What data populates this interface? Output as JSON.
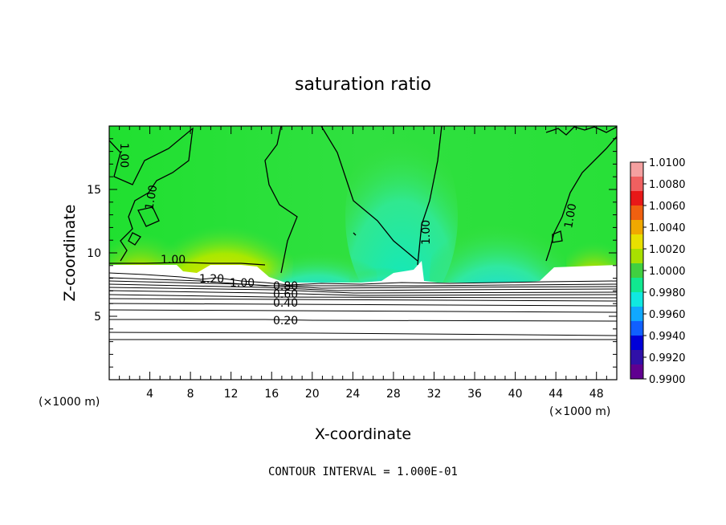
{
  "chart_data": {
    "type": "heatmap",
    "title": "saturation ratio",
    "xlabel": "X-coordinate",
    "ylabel": "Z-coordinate",
    "x_unit_label": "(×1000 m)",
    "x_unit_label_right": "(×1000 m)",
    "xlim": [
      0,
      50
    ],
    "ylim": [
      0,
      20
    ],
    "x_ticks": [
      4,
      8,
      12,
      16,
      20,
      24,
      28,
      32,
      36,
      40,
      44,
      48
    ],
    "y_ticks": [
      5,
      10,
      15
    ],
    "colorbar": {
      "levels": [
        "1.0100",
        "1.0080",
        "1.0060",
        "1.0040",
        "1.0020",
        "1.0000",
        "0.9980",
        "0.9960",
        "0.9940",
        "0.9920",
        "0.9900"
      ],
      "colors": [
        "#f4a0a0",
        "#f06060",
        "#e81818",
        "#f06010",
        "#f0a800",
        "#e8e000",
        "#a8e000",
        "#40d040",
        "#10e890",
        "#10e8e0",
        "#10a8ff",
        "#1060ff",
        "#0000d8",
        "#3010a8",
        "#600090"
      ]
    },
    "contour_labels": [
      "1.00",
      "1.00",
      "1.00",
      "1.00",
      "1.00",
      "1.20",
      "1.00",
      "0.80",
      "0.60",
      "0.40",
      "0.20"
    ],
    "footer": "CONTOUR INTERVAL = 1.000E-01"
  }
}
